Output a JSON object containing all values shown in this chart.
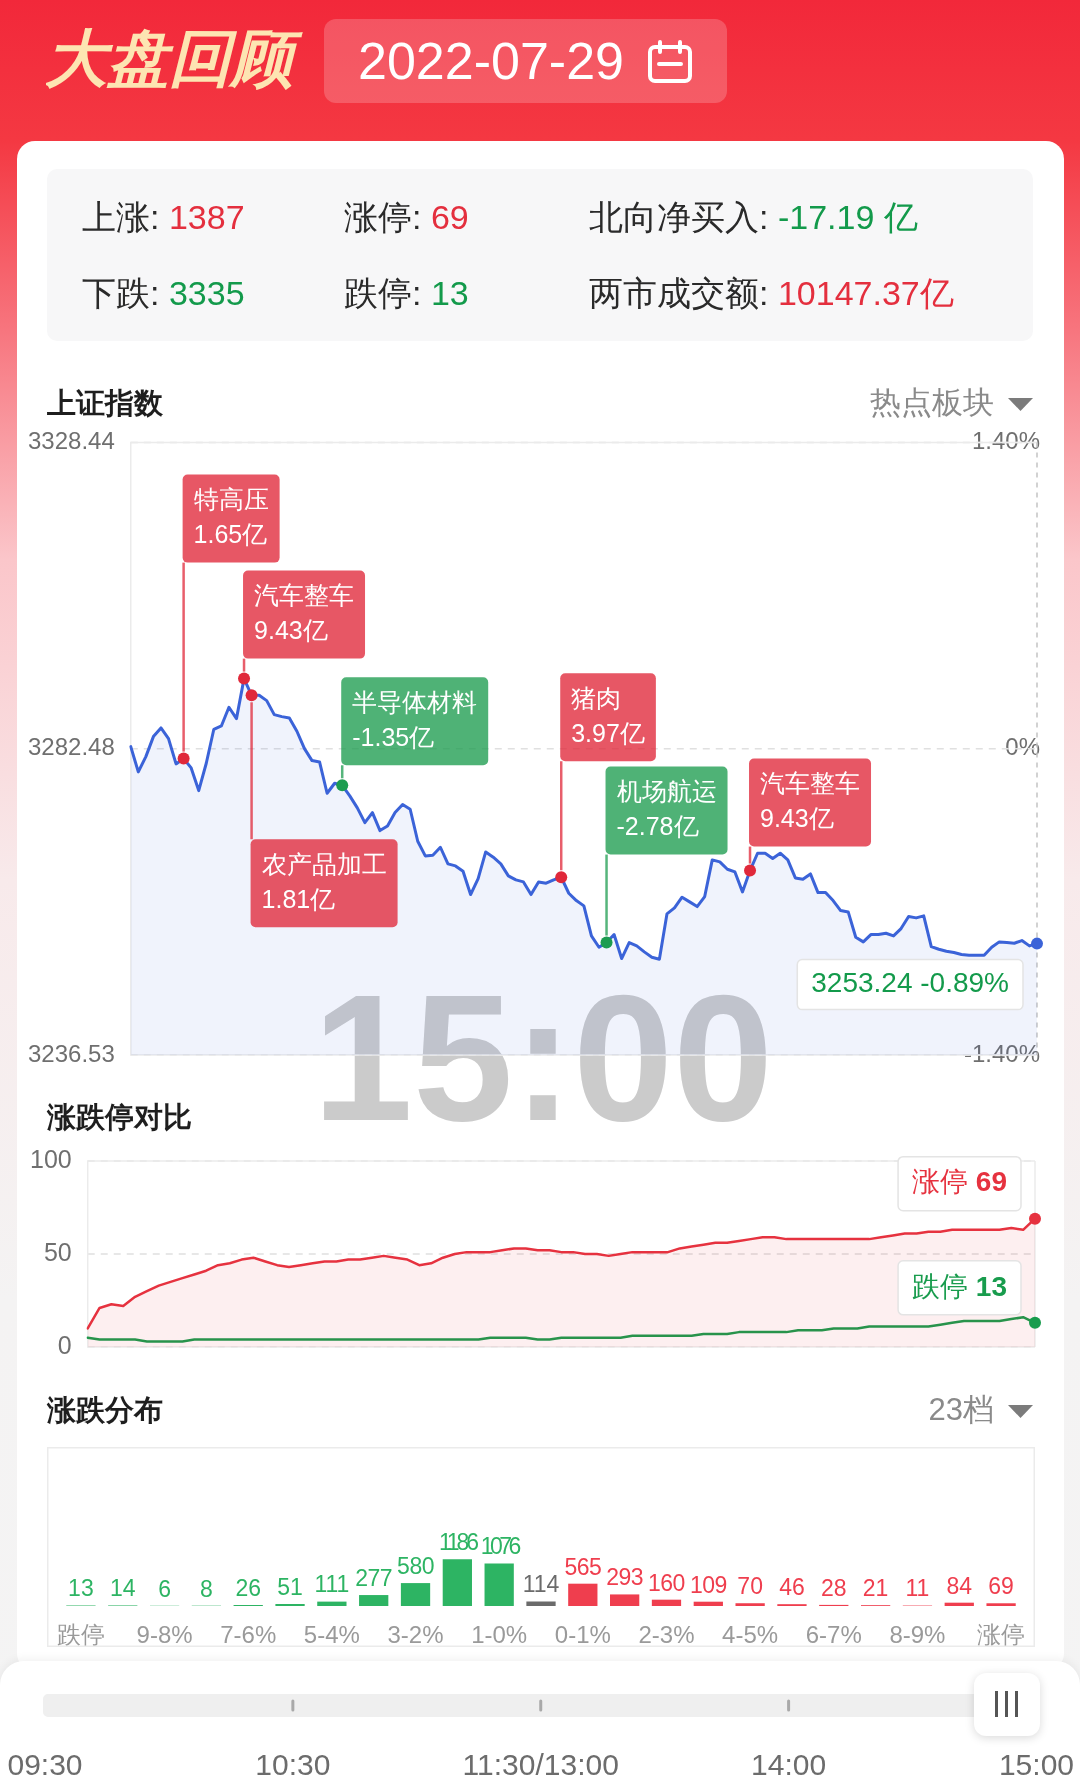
{
  "chart_data": [
    {
      "type": "other",
      "title": "大盘回顾",
      "subtitle": "2022-07-29",
      "annotations": [
        "上涨: 1387",
        "涨停: 69",
        "北向净买入: -17.19 亿",
        "下跌: 3335",
        "跌停: 13",
        "两市成交额: 10147.37亿"
      ]
    },
    {
      "type": "area",
      "title": "上证指数",
      "annotations": [
        "热点板块",
        "15:00",
        "特高压\n1.65亿",
        "汽车整车\n9.43亿",
        "农产品加工\n1.81亿",
        "半导体材料\n-1.35亿",
        "猪肉\n3.97亿",
        "机场航运\n-2.78亿",
        "汽车整车\n9.43亿"
      ],
      "categories": [
        null,
        null,
        null,
        null,
        null,
        null,
        null,
        null,
        null,
        null,
        null,
        null,
        null,
        null,
        null,
        null,
        null,
        null,
        null,
        null,
        null,
        null,
        null,
        null,
        null,
        null,
        null,
        null,
        null,
        null,
        null,
        null,
        null,
        null,
        null,
        null,
        null,
        null,
        null,
        null,
        null,
        null,
        null,
        null,
        null,
        null,
        null,
        null,
        null,
        null,
        null,
        null,
        null,
        null,
        null,
        null,
        null,
        null,
        null,
        null,
        null,
        null,
        null,
        null,
        null,
        null,
        null,
        null,
        null,
        null,
        null,
        null,
        null,
        null,
        null,
        null,
        null,
        null,
        null,
        null,
        null,
        null,
        null,
        null,
        null,
        null,
        null,
        null,
        null,
        null,
        null,
        null,
        null,
        null,
        null,
        null,
        null,
        null,
        null,
        null,
        null,
        null,
        null,
        null,
        null,
        null,
        null,
        null,
        null,
        null,
        null,
        null,
        null,
        null,
        null,
        null,
        null,
        null,
        null,
        null,
        null
      ],
      "series": [
        {
          "color": "#3b63d8",
          "values": [
            3282.8,
            3279.0,
            3281.3,
            3284.3,
            3285.6,
            3284.0,
            3280.2,
            3281.0,
            3279.6,
            3276.2,
            3280.3,
            3285.4,
            3285.9,
            3288.7,
            3287.0,
            3293.0,
            3290.5,
            3290.5,
            3289.7,
            3287.6,
            3287.3,
            3287.1,
            3285.1,
            3282.5,
            3280.7,
            3280.5,
            3275.8,
            3277.3,
            3277.0,
            3275.4,
            3273.6,
            3271.4,
            3272.9,
            3270.2,
            3270.9,
            3272.9,
            3274.1,
            3273.4,
            3268.6,
            3266.4,
            3266.5,
            3267.7,
            3265.2,
            3264.9,
            3264.1,
            3260.6,
            3263.0,
            3267.0,
            3266.2,
            3265.2,
            3263.4,
            3262.8,
            3262.5,
            3260.6,
            3262.5,
            3262.3,
            3262.8,
            3263.2,
            3260.8,
            3259.7,
            3258.9,
            3254.4,
            3252.7,
            3253.4,
            3254.6,
            3251.0,
            3253.4,
            3252.9,
            3252.0,
            3251.2,
            3250.9,
            3257.7,
            3258.6,
            3260.2,
            3259.5,
            3258.8,
            3260.3,
            3265.8,
            3265.5,
            3264.4,
            3264.0,
            3261.0,
            3264.2,
            3266.8,
            3266.8,
            3266.0,
            3266.8,
            3265.8,
            3263.1,
            3262.9,
            3263.7,
            3260.9,
            3260.9,
            3259.7,
            3258.2,
            3258.0,
            3254.2,
            3253.5,
            3254.6,
            3254.6,
            3254.8,
            3254.4,
            3255.5,
            3257.3,
            3257.1,
            3257.4,
            3252.8,
            3252.4,
            3252.1,
            3251.9,
            3251.6,
            3251.5,
            3251.5,
            3251.5,
            3252.7,
            3253.5,
            3253.4,
            3253.3,
            3253.7,
            3252.9,
            3253.24
          ],
          "value_labels": [
            null,
            null,
            null,
            null,
            null,
            null,
            null,
            null,
            null,
            null,
            null,
            null,
            null,
            null,
            null,
            null,
            null,
            null,
            null,
            null,
            null,
            null,
            null,
            null,
            null,
            null,
            null,
            null,
            null,
            null,
            null,
            null,
            null,
            null,
            null,
            null,
            null,
            null,
            null,
            null,
            null,
            null,
            null,
            null,
            null,
            null,
            null,
            null,
            null,
            null,
            null,
            null,
            null,
            null,
            null,
            null,
            null,
            null,
            null,
            null,
            null,
            null,
            null,
            null,
            null,
            null,
            null,
            null,
            null,
            null,
            null,
            null,
            null,
            null,
            null,
            null,
            null,
            null,
            null,
            null,
            null,
            null,
            null,
            null,
            null,
            null,
            null,
            null,
            null,
            null,
            null,
            null,
            null,
            null,
            null,
            null,
            null,
            null,
            null,
            null,
            null,
            null,
            null,
            null,
            null,
            null,
            null,
            null,
            null,
            null,
            null,
            null,
            null,
            null,
            null,
            null,
            null,
            null,
            null,
            null,
            "3253.24 -0.89%"
          ]
        },
        {
          "type": "scatter",
          "values": [
            null,
            null,
            null,
            null,
            null,
            null,
            null,
            3281.0,
            null,
            null,
            null,
            null,
            null,
            null,
            null,
            3293.0,
            3290.5,
            null,
            null,
            null,
            null,
            null,
            null,
            null,
            null,
            null,
            null,
            null,
            3277.0,
            null,
            null,
            null,
            null,
            null,
            null,
            null,
            null,
            null,
            null,
            null,
            null,
            null,
            null,
            null,
            null,
            null,
            null,
            null,
            null,
            null,
            null,
            null,
            null,
            null,
            null,
            null,
            null,
            3263.2,
            null,
            null,
            null,
            null,
            null,
            3253.4,
            null,
            null,
            null,
            null,
            null,
            null,
            null,
            null,
            null,
            null,
            null,
            null,
            null,
            null,
            null,
            null,
            null,
            null,
            3264.2,
            null,
            null,
            null,
            null,
            null,
            null,
            null,
            null,
            null,
            null,
            null,
            null,
            null,
            null,
            null,
            null,
            null,
            null,
            null,
            null,
            null,
            null,
            null,
            null,
            null,
            null,
            null,
            null,
            null,
            null,
            null,
            null,
            null,
            null,
            null,
            null,
            null,
            null
          ],
          "colors": [
            null,
            null,
            null,
            null,
            null,
            null,
            null,
            "#e0283a",
            null,
            null,
            null,
            null,
            null,
            null,
            null,
            "#e0283a",
            "#e0283a",
            null,
            null,
            null,
            null,
            null,
            null,
            null,
            null,
            null,
            null,
            null,
            "#1d9c50",
            null,
            null,
            null,
            null,
            null,
            null,
            null,
            null,
            null,
            null,
            null,
            null,
            null,
            null,
            null,
            null,
            null,
            null,
            null,
            null,
            null,
            null,
            null,
            null,
            null,
            null,
            null,
            null,
            "#e0283a",
            null,
            null,
            null,
            null,
            null,
            "#1d9c50",
            null,
            null,
            null,
            null,
            null,
            null,
            null,
            null,
            null,
            null,
            null,
            null,
            null,
            null,
            null,
            null,
            null,
            null,
            "#e0283a",
            null,
            null,
            null,
            null,
            null,
            null,
            null,
            null,
            null,
            null,
            null,
            null,
            null,
            null,
            null,
            null,
            null,
            null,
            null,
            null,
            null,
            null,
            null,
            null,
            null,
            null,
            null,
            null,
            null,
            null,
            null,
            null,
            null,
            null,
            null,
            null,
            null,
            null
          ]
        }
      ],
      "ylim": [
        3236.53,
        3328.44
      ],
      "yticks": [
        3236.53,
        3282.48,
        3328.44
      ],
      "y2lim": [
        -1.4,
        1.4
      ],
      "y2ticks": [
        {
          "value": -1.4,
          "label": "-1.40%"
        },
        {
          "value": 0,
          "label": "0%"
        },
        {
          "value": 1.4,
          "label": "1.40%"
        }
      ],
      "grid": "y"
    },
    {
      "type": "line",
      "title": "涨跌停对比",
      "categories": [
        null,
        null,
        null,
        null,
        null,
        null,
        null,
        null,
        null,
        null,
        null,
        null,
        null,
        null,
        null,
        null,
        null,
        null,
        null,
        null,
        null,
        null,
        null,
        null,
        null,
        null,
        null,
        null,
        null,
        null,
        null,
        null,
        null,
        null,
        null,
        null,
        null,
        null,
        null,
        null,
        null,
        null,
        null,
        null,
        null,
        null,
        null,
        null,
        null,
        null,
        null,
        null,
        null,
        null,
        null,
        null,
        null,
        null,
        null,
        null,
        null,
        null,
        null,
        null,
        null,
        null,
        null,
        null,
        null,
        null,
        null,
        null,
        null,
        null,
        null,
        null,
        null,
        null,
        null,
        null,
        null
      ],
      "series": [
        {
          "name": "涨停",
          "type": "area",
          "color": "#e6323f",
          "values": [
            10,
            21,
            23,
            22,
            27,
            30,
            33,
            35,
            37,
            39,
            41,
            44,
            45,
            47,
            48,
            46,
            44,
            43,
            44,
            45,
            46,
            46,
            47,
            47,
            48,
            49,
            48,
            47,
            44,
            45,
            48,
            50,
            51,
            51,
            51,
            52,
            53,
            53,
            52,
            52,
            51,
            51,
            50,
            50,
            49,
            50,
            51,
            51,
            51,
            51,
            53,
            54,
            55,
            56,
            56,
            57,
            58,
            59,
            59,
            58,
            58,
            58,
            58,
            58,
            58,
            58,
            58,
            59,
            60,
            61,
            61,
            62,
            62,
            63,
            63,
            63,
            63,
            63,
            64,
            63,
            69
          ],
          "value_labels": [
            null,
            null,
            null,
            null,
            null,
            null,
            null,
            null,
            null,
            null,
            null,
            null,
            null,
            null,
            null,
            null,
            null,
            null,
            null,
            null,
            null,
            null,
            null,
            null,
            null,
            null,
            null,
            null,
            null,
            null,
            null,
            null,
            null,
            null,
            null,
            null,
            null,
            null,
            null,
            null,
            null,
            null,
            null,
            null,
            null,
            null,
            null,
            null,
            null,
            null,
            null,
            null,
            null,
            null,
            null,
            null,
            null,
            null,
            null,
            null,
            null,
            null,
            null,
            null,
            null,
            null,
            null,
            null,
            null,
            null,
            null,
            null,
            null,
            null,
            null,
            null,
            null,
            null,
            null,
            null,
            "69"
          ]
        },
        {
          "name": "跌停",
          "color": "#189c4d",
          "values": [
            5,
            4,
            4,
            4,
            4,
            3,
            3,
            3,
            3,
            4,
            4,
            4,
            4,
            4,
            4,
            4,
            4,
            4,
            4,
            4,
            4,
            4,
            4,
            4,
            4,
            4,
            4,
            4,
            4,
            4,
            4,
            4,
            4,
            4,
            5,
            5,
            5,
            5,
            4,
            4,
            5,
            5,
            5,
            5,
            5,
            5,
            6,
            6,
            6,
            6,
            6,
            6,
            7,
            7,
            7,
            8,
            8,
            8,
            8,
            8,
            9,
            9,
            9,
            10,
            10,
            10,
            11,
            11,
            11,
            11,
            11,
            11,
            12,
            13,
            14,
            14,
            14,
            14,
            15,
            16,
            13
          ],
          "value_labels": [
            null,
            null,
            null,
            null,
            null,
            null,
            null,
            null,
            null,
            null,
            null,
            null,
            null,
            null,
            null,
            null,
            null,
            null,
            null,
            null,
            null,
            null,
            null,
            null,
            null,
            null,
            null,
            null,
            null,
            null,
            null,
            null,
            null,
            null,
            null,
            null,
            null,
            null,
            null,
            null,
            null,
            null,
            null,
            null,
            null,
            null,
            null,
            null,
            null,
            null,
            null,
            null,
            null,
            null,
            null,
            null,
            null,
            null,
            null,
            null,
            null,
            null,
            null,
            null,
            null,
            null,
            null,
            null,
            null,
            null,
            null,
            null,
            null,
            null,
            null,
            null,
            null,
            null,
            null,
            null,
            "13"
          ]
        }
      ],
      "ylim": [
        0,
        100
      ],
      "yticks": [
        0,
        50,
        100
      ],
      "grid": "y"
    },
    {
      "type": "bar",
      "title": "涨跌分布",
      "annotations": [
        "23档"
      ],
      "categories": [
        "跌停",
        null,
        "9-8%",
        null,
        "7-6%",
        null,
        "5-4%",
        null,
        "3-2%",
        null,
        "1-0%",
        null,
        "0-1%",
        null,
        "2-3%",
        null,
        "4-5%",
        null,
        "6-7%",
        null,
        "8-9%",
        null,
        "涨停"
      ],
      "values": [
        13,
        14,
        6,
        8,
        26,
        51,
        111,
        277,
        580,
        1186,
        1076,
        114,
        565,
        293,
        160,
        109,
        70,
        46,
        28,
        21,
        11,
        84,
        69
      ],
      "colors": [
        "#2db463",
        "#2db463",
        "#2db463",
        "#2db463",
        "#2db463",
        "#2db463",
        "#2db463",
        "#2db463",
        "#2db463",
        "#2db463",
        "#2db463",
        "#6b6b6b",
        "#ef3e4e",
        "#ef3e4e",
        "#ef3e4e",
        "#ef3e4e",
        "#ef3e4e",
        "#ef3e4e",
        "#ef3e4e",
        "#ef3e4e",
        "#ef3e4e",
        "#ef3e4e",
        "#ef3e4e"
      ],
      "data_labels": true
    },
    {
      "type": "other",
      "categories": [
        "09:30",
        "10:30",
        "11:30/13:00",
        "14:00",
        "15:00"
      ]
    }
  ]
}
